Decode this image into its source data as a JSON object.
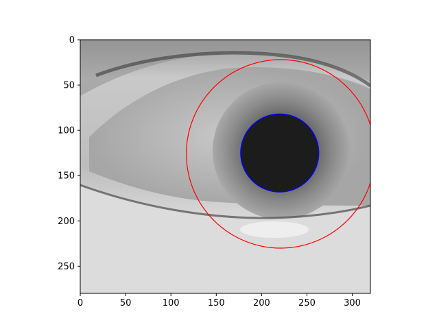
{
  "figure": {
    "image_description_free": true,
    "image_extent": {
      "x": [
        0,
        320
      ],
      "y": [
        0,
        280
      ]
    },
    "y_axis_inverted": true,
    "x_ticks": [
      0,
      50,
      100,
      150,
      200,
      250,
      300
    ],
    "y_ticks": [
      0,
      50,
      100,
      150,
      200,
      250
    ],
    "iris_circle": {
      "cx": 221,
      "cy": 126,
      "r": 104,
      "color": "#ff0000"
    },
    "pupil_circle": {
      "cx": 220,
      "cy": 125,
      "r": 43,
      "color": "#0000ff",
      "fill": "#1c1c1c"
    }
  }
}
